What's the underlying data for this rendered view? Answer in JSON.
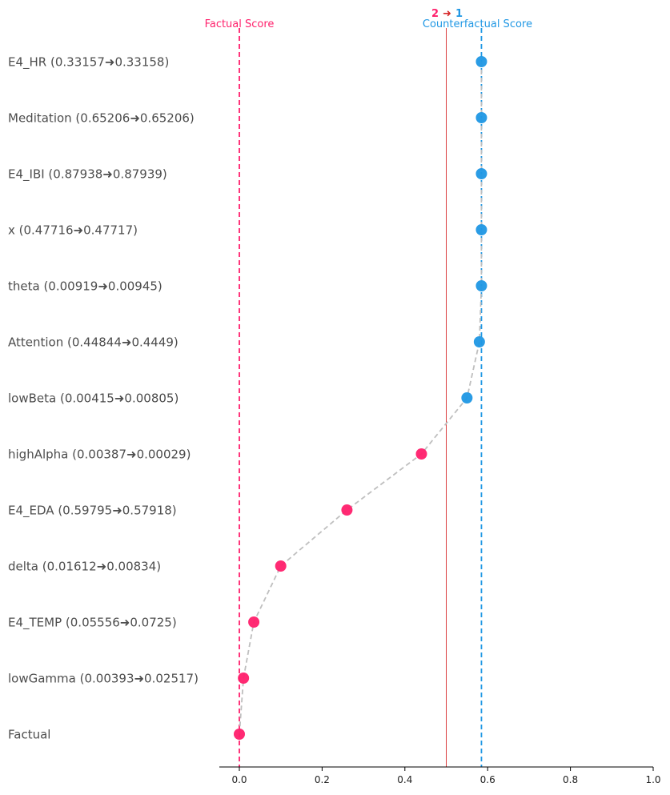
{
  "chart_data": {
    "type": "scatter",
    "title": "",
    "xlabel": "",
    "ylabel": "",
    "xlim": [
      -0.05,
      1.0
    ],
    "x_ticks": [
      0.0,
      0.2,
      0.4,
      0.6,
      0.8,
      1.0
    ],
    "x_tick_labels": [
      "0.0",
      "0.2",
      "0.4",
      "0.6",
      "0.8",
      "1.0"
    ],
    "grid": false,
    "factual_line": {
      "x": 0.0,
      "label": "Factual Score",
      "color": "#ff1f6b"
    },
    "counterfactual_line": {
      "x": 0.585,
      "label": "Counterfactual Score",
      "color": "#1f97e4"
    },
    "threshold_line": {
      "x": 0.5,
      "color": "#d62728"
    },
    "class_change": {
      "from": "2",
      "arrow": "➜",
      "to": "1",
      "from_color": "#ff1f6b",
      "arrow_color": "#d62728",
      "to_color": "#1f97e4"
    },
    "points": [
      {
        "label": "E4_HR (0.33157➜0.33158)",
        "x": 0.585,
        "cls": "counterfactual"
      },
      {
        "label": "Meditation (0.65206➜0.65206)",
        "x": 0.585,
        "cls": "counterfactual"
      },
      {
        "label": "E4_IBI (0.87938➜0.87939)",
        "x": 0.585,
        "cls": "counterfactual"
      },
      {
        "label": "x (0.47716➜0.47717)",
        "x": 0.585,
        "cls": "counterfactual"
      },
      {
        "label": "theta (0.00919➜0.00945)",
        "x": 0.585,
        "cls": "counterfactual"
      },
      {
        "label": "Attention (0.44844➜0.4449)",
        "x": 0.58,
        "cls": "counterfactual"
      },
      {
        "label": "lowBeta (0.00415➜0.00805)",
        "x": 0.55,
        "cls": "counterfactual"
      },
      {
        "label": "highAlpha (0.00387➜0.00029)",
        "x": 0.44,
        "cls": "factual"
      },
      {
        "label": "E4_EDA (0.59795➜0.57918)",
        "x": 0.26,
        "cls": "factual"
      },
      {
        "label": "delta (0.01612➜0.00834)",
        "x": 0.1,
        "cls": "factual"
      },
      {
        "label": "E4_TEMP (0.05556➜0.0725)",
        "x": 0.035,
        "cls": "factual"
      },
      {
        "label": "lowGamma (0.00393➜0.02517)",
        "x": 0.01,
        "cls": "factual"
      },
      {
        "label": "Factual",
        "x": 0.0,
        "cls": "factual"
      }
    ],
    "colors": {
      "factual": "#ff1f6b",
      "counterfactual": "#1f97e4",
      "path": "#bfbfbf",
      "axis": "#000000"
    }
  }
}
